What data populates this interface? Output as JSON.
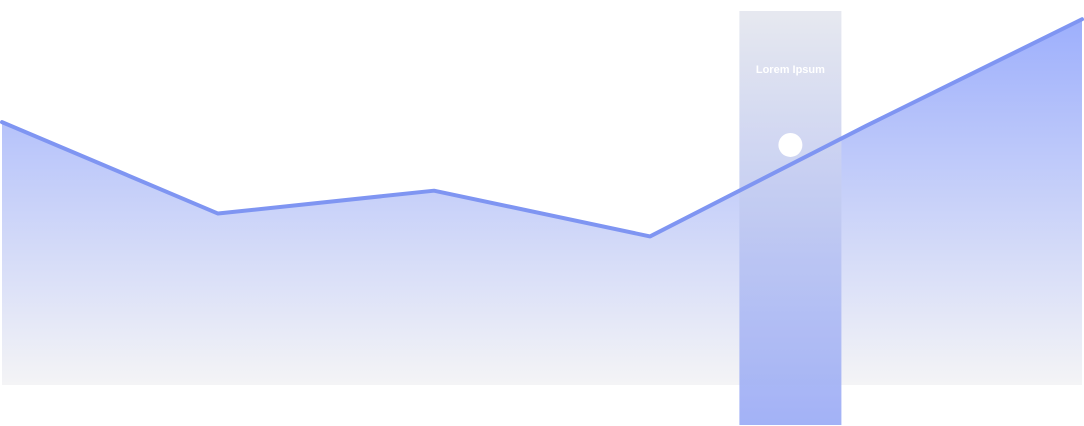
{
  "chart_data": {
    "type": "area",
    "title": "",
    "xlabel": "",
    "ylabel": "",
    "grid": false,
    "legend": "none",
    "x": [
      0,
      1,
      2,
      3,
      4,
      5
    ],
    "series": [
      {
        "values": [
          6.9,
          4.5,
          5.1,
          3.9,
          6.8,
          9.6
        ]
      }
    ],
    "ylim": [
      0,
      10
    ],
    "highlight": {
      "x": 3.65,
      "value": 6.3,
      "label": "Lorem Ipsum"
    },
    "colors": {
      "line": "#7f95f2",
      "fill_top": "#9daffc",
      "fill_bottom": "#f4f4f6",
      "band_top": "#f6f6f8",
      "band_bottom": "#a4b4ff",
      "label": "#ffffff",
      "marker": "#ffffff"
    }
  }
}
